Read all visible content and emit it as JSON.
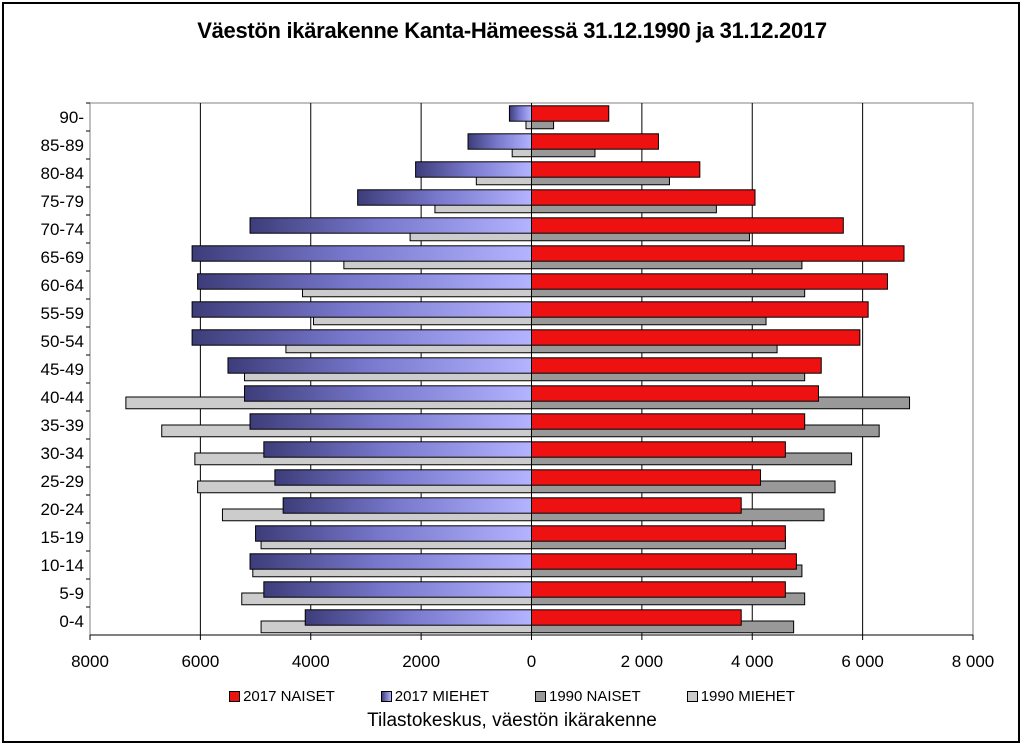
{
  "chart_data": {
    "type": "bar",
    "title": "Väestön ikärakenne Kanta-Hämeessä 31.12.1990 ja 31.12.2017",
    "source": "Tilastokeskus, väestön ikärakenne",
    "categories": [
      "0-4",
      "5-9",
      "10-14",
      "15-19",
      "20-24",
      "25-29",
      "30-34",
      "35-39",
      "40-44",
      "45-49",
      "50-54",
      "55-59",
      "60-64",
      "65-69",
      "70-74",
      "75-79",
      "80-84",
      "85-89",
      "90-"
    ],
    "series": [
      {
        "name": "2017 NAISET",
        "color": "#ee1111",
        "values": [
          3800,
          4600,
          4800,
          4600,
          3800,
          4150,
          4600,
          4950,
          5200,
          5250,
          5950,
          6100,
          6450,
          6750,
          5650,
          4050,
          3050,
          2300,
          1400
        ]
      },
      {
        "name": "2017 MIEHET",
        "color": "#6666cc",
        "values": [
          4100,
          4850,
          5100,
          5000,
          4500,
          4650,
          4850,
          5100,
          5200,
          5500,
          6150,
          6150,
          6050,
          6150,
          5100,
          3150,
          2100,
          1150,
          400
        ]
      },
      {
        "name": "1990 NAISET",
        "color": "#999999",
        "values": [
          4750,
          4950,
          4900,
          4600,
          5300,
          5500,
          5800,
          6300,
          6850,
          4950,
          4450,
          4250,
          4950,
          4900,
          3950,
          3350,
          2500,
          1150,
          400
        ]
      },
      {
        "name": "1990 MIEHET",
        "color": "#cccccc",
        "values": [
          4900,
          5250,
          5050,
          4900,
          5600,
          6050,
          6100,
          6700,
          7350,
          5200,
          4450,
          3950,
          4150,
          3400,
          2200,
          1750,
          1000,
          350,
          100
        ]
      }
    ],
    "xlim": [
      -8000,
      8000
    ],
    "x_ticks_left": [
      {
        "value": -8000,
        "label": "8000"
      },
      {
        "value": -6000,
        "label": "6000"
      },
      {
        "value": -4000,
        "label": "4000"
      },
      {
        "value": -2000,
        "label": "2000"
      },
      {
        "value": 0,
        "label": "0"
      }
    ],
    "x_ticks_right": [
      {
        "value": 2000,
        "label": "2 000"
      },
      {
        "value": 4000,
        "label": "4 000"
      },
      {
        "value": 6000,
        "label": "6 000"
      },
      {
        "value": 8000,
        "label": "8 000"
      }
    ],
    "grid": true,
    "legend_position": "bottom"
  }
}
